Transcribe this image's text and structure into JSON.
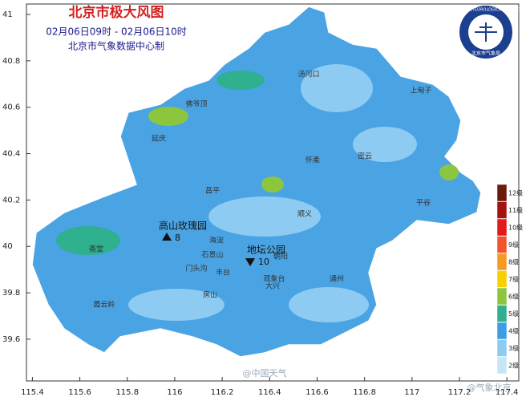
{
  "header": {
    "title": "北京市极大风图",
    "time": "02月06日09时 - 02月06日10时",
    "source": "北京市气象数据中心制"
  },
  "axes": {
    "xlim": [
      115.375,
      117.45
    ],
    "xticks": [
      115.4,
      115.6,
      115.8,
      116,
      116.2,
      116.4,
      116.6,
      116.8,
      117,
      117.2,
      117.4
    ],
    "ylim": [
      39.42,
      41.045
    ],
    "yticks": [
      39.6,
      39.8,
      40,
      40.2,
      40.4,
      40.6,
      40.8,
      41
    ]
  },
  "legend": [
    {
      "label": "12级",
      "color": "#6b1a0e"
    },
    {
      "label": "11级",
      "color": "#a3130f"
    },
    {
      "label": "10级",
      "color": "#e3191b"
    },
    {
      "label": "9级",
      "color": "#f2542d"
    },
    {
      "label": "8级",
      "color": "#f59a23"
    },
    {
      "label": "7级",
      "color": "#f6d000"
    },
    {
      "label": "6级",
      "color": "#8cc63f"
    },
    {
      "label": "5级",
      "color": "#2fb08f"
    },
    {
      "label": "4级",
      "color": "#3d9ee6"
    },
    {
      "label": "3级",
      "color": "#8ecbf2"
    },
    {
      "label": "2级",
      "color": "#c6e6f8"
    }
  ],
  "stations": [
    {
      "name": "高山玫瑰园",
      "value": "8"
    },
    {
      "name": "地坛公园",
      "value": "10"
    }
  ],
  "places": [
    "汤河口",
    "上甸子",
    "延庆",
    "佛爷顶",
    "怀柔",
    "密云",
    "昌平",
    "顺义",
    "平谷",
    "海淀",
    "石景山",
    "门头沟",
    "丰台",
    "朝阳",
    "通州",
    "房山",
    "大兴",
    "霞云岭",
    "斋堂",
    "观象台"
  ],
  "logo": {
    "ring": "BEIJING METEOROLOGICAL SERVICE",
    "name": "北京市气象局"
  },
  "watermarks": [
    "@中国天气",
    "@气象北京"
  ]
}
